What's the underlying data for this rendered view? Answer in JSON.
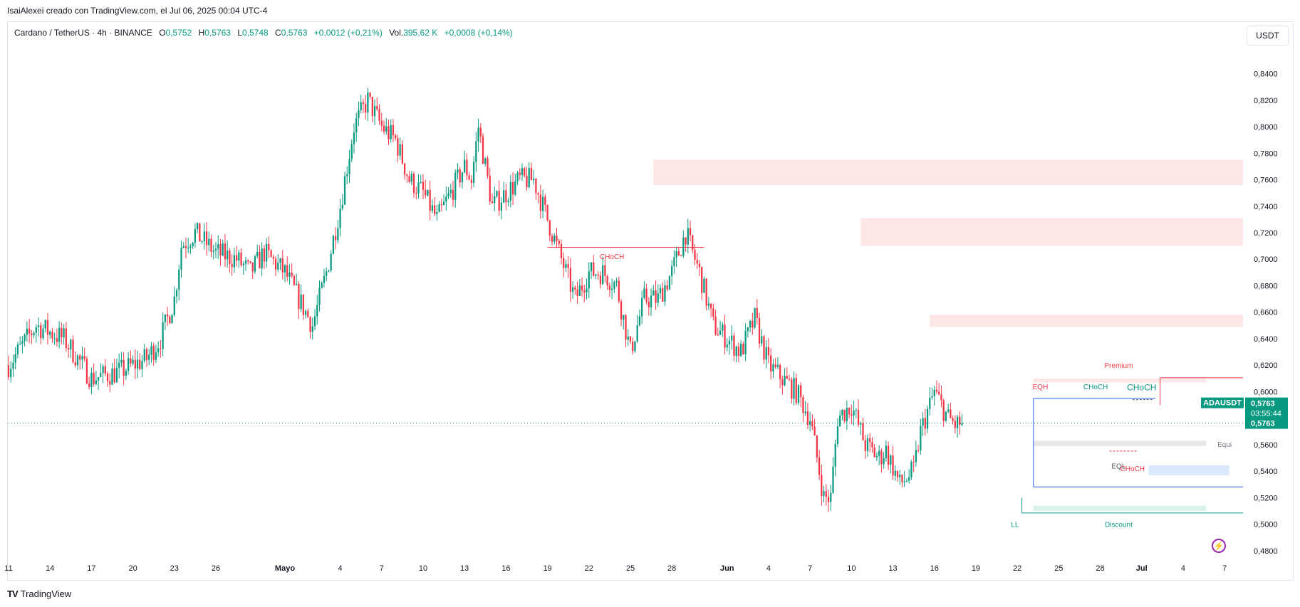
{
  "header": {
    "attribution": "IsaiAlexei creado con TradingView.com, el Jul 06, 2025 00:04 UTC-4"
  },
  "legend": {
    "symbol": "Cardano / TetherUS · 4h · BINANCE",
    "open_label": "O",
    "open": "0,5752",
    "high_label": "H",
    "high": "0,5763",
    "low_label": "L",
    "low": "0,5748",
    "close_label": "C",
    "close": "0,5763",
    "change": "+0,0012 (+0,21%)",
    "volume_label": "Vol.",
    "volume": "395,62 K",
    "volume_change": "+0,0008 (+0,14%)"
  },
  "currency_button": "USDT",
  "price_tags": {
    "symbol": "ADAUSDT",
    "last": "0,5763",
    "countdown": "03:55:44",
    "last2": "0,5763"
  },
  "brand": {
    "logo": "TV",
    "name": "TradingView"
  },
  "colors": {
    "up": "#089981",
    "down": "#f23645",
    "zone_red": "#fce3e3",
    "zone_blue": "#d6e6fb",
    "zone_green": "#d7efe9",
    "zone_gray": "#e6e6e6",
    "box_blue": "#2962ff"
  },
  "chart_data": {
    "type": "candlestick",
    "x_ticks": [
      "11",
      "14",
      "17",
      "20",
      "23",
      "26",
      "Mayo",
      "4",
      "7",
      "10",
      "13",
      "16",
      "19",
      "22",
      "25",
      "28",
      "Jun",
      "4",
      "7",
      "10",
      "13",
      "16",
      "19",
      "22",
      "25",
      "28",
      "Jul",
      "4",
      "7"
    ],
    "y_ticks": [
      "0,8400",
      "0,8200",
      "0,8000",
      "0,7800",
      "0,7600",
      "0,7400",
      "0,7200",
      "0,7000",
      "0,6800",
      "0,6600",
      "0,6400",
      "0,6200",
      "0,6000",
      "0,5600",
      "0,5400",
      "0,5200",
      "0,5000",
      "0,4800"
    ],
    "ylim": [
      0.473,
      0.858
    ],
    "path_points": [
      [
        0,
        0.62
      ],
      [
        4,
        0.65
      ],
      [
        8,
        0.64
      ],
      [
        12,
        0.61
      ],
      [
        16,
        0.615
      ],
      [
        20,
        0.625
      ],
      [
        22,
        0.64
      ],
      [
        24,
        0.67
      ],
      [
        25,
        0.71
      ],
      [
        27,
        0.72
      ],
      [
        30,
        0.705
      ],
      [
        33,
        0.7
      ],
      [
        35,
        0.69
      ],
      [
        37,
        0.705
      ],
      [
        40,
        0.69
      ],
      [
        42,
        0.67
      ],
      [
        44,
        0.65
      ],
      [
        46,
        0.69
      ],
      [
        48,
        0.74
      ],
      [
        50,
        0.8
      ],
      [
        52,
        0.82
      ],
      [
        54,
        0.8
      ],
      [
        56,
        0.79
      ],
      [
        58,
        0.76
      ],
      [
        60,
        0.75
      ],
      [
        62,
        0.73
      ],
      [
        64,
        0.75
      ],
      [
        66,
        0.77
      ],
      [
        67,
        0.76
      ],
      [
        68,
        0.8
      ],
      [
        70,
        0.74
      ],
      [
        72,
        0.75
      ],
      [
        74,
        0.76
      ],
      [
        76,
        0.76
      ],
      [
        78,
        0.73
      ],
      [
        80,
        0.7
      ],
      [
        82,
        0.67
      ],
      [
        84,
        0.69
      ],
      [
        86,
        0.69
      ],
      [
        88,
        0.68
      ],
      [
        90,
        0.63
      ],
      [
        92,
        0.67
      ],
      [
        94,
        0.67
      ],
      [
        96,
        0.69
      ],
      [
        98,
        0.72
      ],
      [
        100,
        0.69
      ],
      [
        102,
        0.65
      ],
      [
        104,
        0.64
      ],
      [
        106,
        0.63
      ],
      [
        108,
        0.655
      ],
      [
        110,
        0.62
      ],
      [
        112,
        0.61
      ],
      [
        114,
        0.6
      ],
      [
        116,
        0.58
      ],
      [
        118,
        0.52
      ],
      [
        119,
        0.52
      ],
      [
        120,
        0.58
      ],
      [
        122,
        0.59
      ],
      [
        124,
        0.56
      ],
      [
        126,
        0.55
      ],
      [
        127,
        0.556
      ],
      [
        129,
        0.53
      ],
      [
        131,
        0.54
      ],
      [
        132,
        0.57
      ],
      [
        134,
        0.6
      ],
      [
        135,
        0.59
      ],
      [
        136,
        0.58
      ],
      [
        137,
        0.575
      ],
      [
        138,
        0.5763
      ]
    ],
    "n_candles": 415,
    "x_tick_index": [
      0,
      18,
      36,
      54,
      72,
      90,
      120,
      144,
      162,
      180,
      198,
      216,
      234,
      252,
      270,
      288,
      312,
      330,
      348,
      366,
      384,
      402,
      420,
      438,
      456,
      474,
      492,
      510,
      528
    ],
    "last_price": 0.5763,
    "zones": [
      {
        "type": "supply",
        "y1": 0.775,
        "y2": 0.756,
        "from_index": 280,
        "color": "zone_red"
      },
      {
        "type": "supply",
        "y1": 0.731,
        "y2": 0.71,
        "from_index": 370,
        "color": "zone_red"
      },
      {
        "type": "supply",
        "y1": 0.658,
        "y2": 0.649,
        "from_index": 400,
        "color": "zone_red"
      },
      {
        "type": "premium",
        "y1": 0.61,
        "y2": 0.607,
        "from_index": 445,
        "to_index": 520,
        "color": "zone_red"
      },
      {
        "type": "equilibrium",
        "y1": 0.563,
        "y2": 0.559,
        "from_index": 445,
        "to_index": 520,
        "color": "zone_gray"
      },
      {
        "type": "demand",
        "y1": 0.5445,
        "y2": 0.537,
        "from_index": 495,
        "to_index": 530,
        "color": "zone_blue"
      },
      {
        "type": "discount",
        "y1": 0.514,
        "y2": 0.51,
        "from_index": 445,
        "to_index": 520,
        "color": "zone_green"
      }
    ],
    "annotations": [
      {
        "text": "CHoCH",
        "x_index": 262,
        "y": 0.7,
        "color": "down",
        "size": 10
      },
      {
        "text": "Premium",
        "x_index": 482,
        "y": 0.618,
        "color": "down",
        "size": 10
      },
      {
        "text": "EQH",
        "x_index": 448,
        "y": 0.602,
        "color": "down",
        "size": 10
      },
      {
        "text": "CHoCH",
        "x_index": 472,
        "y": 0.602,
        "color": "up",
        "size": 10
      },
      {
        "text": "CHoCH",
        "x_index": 492,
        "y": 0.601,
        "color": "up",
        "size": 12
      },
      {
        "text": "EQL",
        "x_index": 482,
        "y": 0.542,
        "color": "#555",
        "size": 10
      },
      {
        "text": "CHoCH",
        "x_index": 488,
        "y": 0.54,
        "color": "down",
        "size": 10
      },
      {
        "text": "Equi",
        "x_index": 528,
        "y": 0.5585,
        "color": "#787b86",
        "size": 10
      },
      {
        "text": "LL",
        "x_index": 437,
        "y": 0.498,
        "color": "up",
        "size": 10
      },
      {
        "text": "Discount",
        "x_index": 482,
        "y": 0.498,
        "color": "up",
        "size": 10
      }
    ]
  }
}
